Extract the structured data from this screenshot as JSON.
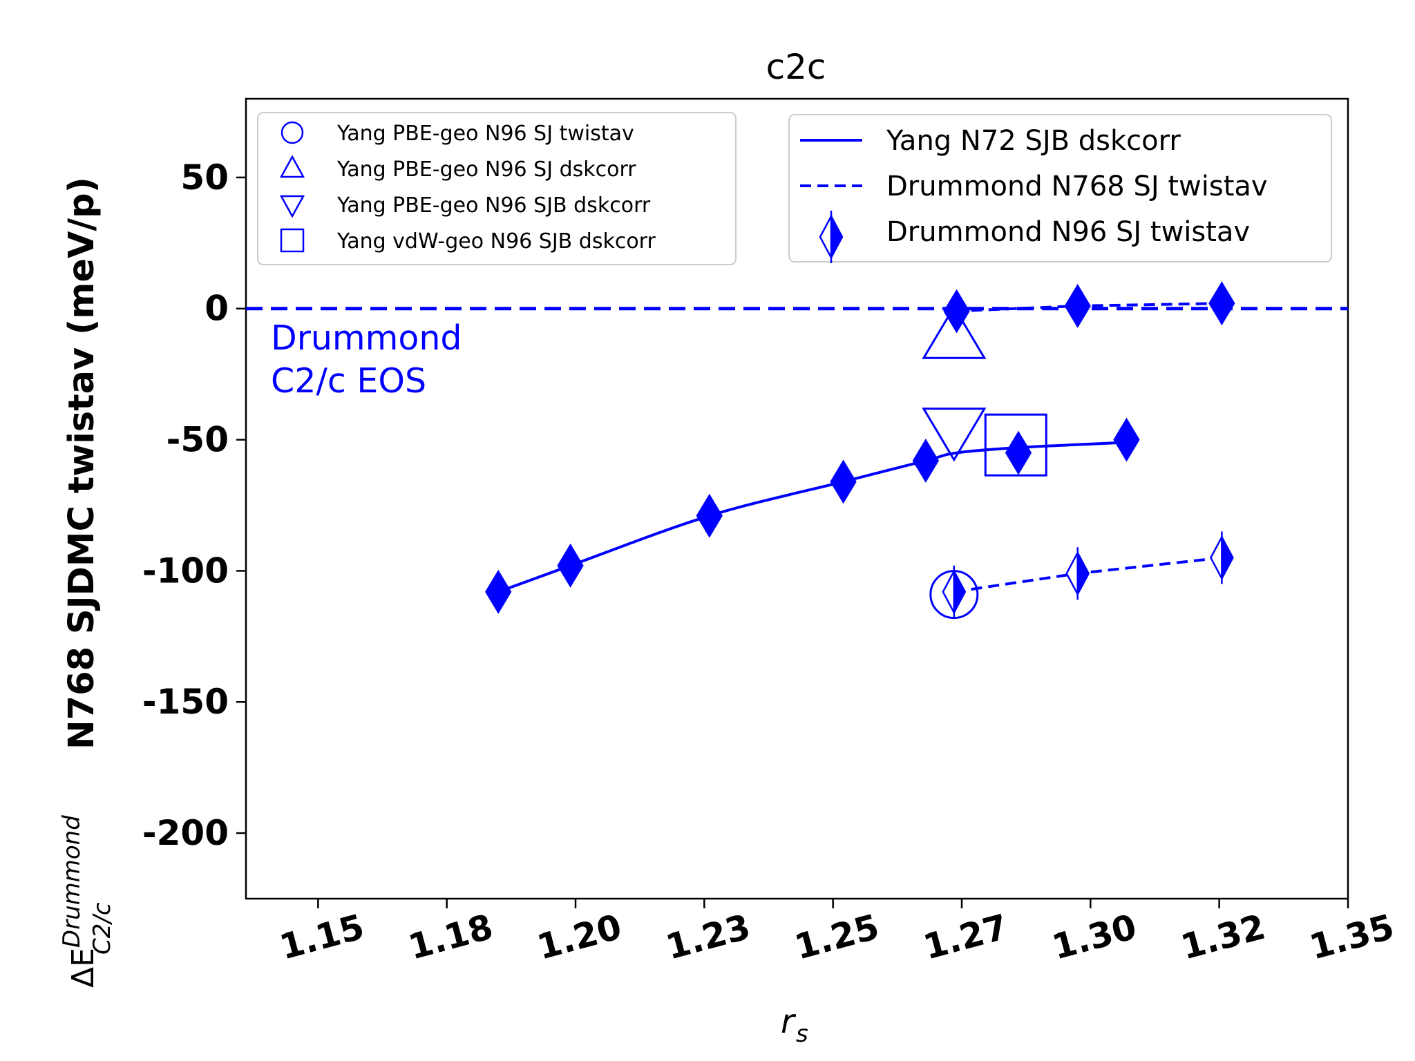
{
  "chart_data": {
    "type": "scatter",
    "title": "c2c",
    "xlabel": "r_s",
    "ylabel": {
      "prefix": "ΔE",
      "superscript": "Drummond",
      "subscript": "C2/c",
      "text": "N768 SJDMC twistav (meV/p)"
    },
    "xlim": [
      1.136,
      1.35
    ],
    "ylim": [
      -225,
      80
    ],
    "x_ticks": [
      1.15,
      1.175,
      1.2,
      1.225,
      1.25,
      1.275,
      1.3,
      1.325,
      1.35
    ],
    "x_tick_labels": [
      "1.15",
      "1.18",
      "1.20",
      "1.23",
      "1.25",
      "1.27",
      "1.30",
      "1.32",
      "1.35"
    ],
    "y_ticks": [
      50,
      0,
      -50,
      -100,
      -150,
      -200
    ],
    "y_tick_labels": [
      "50",
      "0",
      "-50",
      "-100",
      "-150",
      "-200"
    ],
    "grid": false,
    "color": "#0000ff",
    "annotation": [
      "Drummond",
      "C2/c EOS"
    ],
    "series": [
      {
        "name": "Yang N72 SJB dskcorr",
        "kind": "line-solid",
        "x": [
          1.185,
          1.199,
          1.226,
          1.252,
          1.268,
          1.274,
          1.286,
          1.307
        ],
        "y": [
          -108,
          -98,
          -79,
          -66,
          -58,
          -55,
          -53,
          -51
        ]
      },
      {
        "name": "Drummond N768 SJ twistav",
        "kind": "line-dashed",
        "x": [
          1.2735,
          1.2975,
          1.3255
        ],
        "y": [
          -1,
          1,
          2
        ]
      },
      {
        "name": "Drummond N768 SJ twistav",
        "kind": "line-dashed",
        "x": [
          1.2735,
          1.2975,
          1.3255
        ],
        "y": [
          -108,
          -101,
          -95
        ]
      },
      {
        "name": "Drummond N96 SJ twistav",
        "kind": "diamond-filled",
        "x": [
          1.185,
          1.199,
          1.226,
          1.252,
          1.268,
          1.274,
          1.286,
          1.307,
          1.2975,
          1.3255
        ],
        "y": [
          -108,
          -98,
          -79,
          -66,
          -58,
          -1,
          -55,
          -50,
          1,
          2
        ]
      },
      {
        "name": "Drummond N96 SJ twistav",
        "kind": "diamond-half",
        "x": [
          1.2735,
          1.2975,
          1.3255
        ],
        "y": [
          -108,
          -101,
          -95
        ]
      },
      {
        "name": "Yang PBE-geo N96 SJ twistav",
        "kind": "circle",
        "x": [
          1.2735
        ],
        "y": [
          -109
        ]
      },
      {
        "name": "Yang PBE-geo N96 SJ dskcorr",
        "kind": "triangle-up",
        "x": [
          1.2735
        ],
        "y": [
          -12
        ]
      },
      {
        "name": "Yang PBE-geo N96 SJB dskcorr",
        "kind": "triangle-down",
        "x": [
          1.2735
        ],
        "y": [
          -45
        ]
      },
      {
        "name": "Yang vdW-geo N96 SJB dskcorr",
        "kind": "square",
        "x": [
          1.2855
        ],
        "y": [
          -52
        ]
      }
    ],
    "legend_left": {
      "placement": "top-left",
      "entries": [
        {
          "label": "Yang PBE-geo N96 SJ twistav",
          "marker": "circle"
        },
        {
          "label": "Yang PBE-geo N96 SJ dskcorr",
          "marker": "triangle-up"
        },
        {
          "label": "Yang PBE-geo N96 SJB dskcorr",
          "marker": "triangle-down"
        },
        {
          "label": "Yang vdW-geo N96 SJB dskcorr",
          "marker": "square"
        }
      ]
    },
    "legend_right": {
      "placement": "top-right",
      "entries": [
        {
          "label": "Yang N72 SJB dskcorr",
          "marker": "line-solid"
        },
        {
          "label": "Drummond N768 SJ twistav",
          "marker": "line-dashed"
        },
        {
          "label": "Drummond N96 SJ twistav",
          "marker": "diamond-half"
        }
      ]
    }
  }
}
